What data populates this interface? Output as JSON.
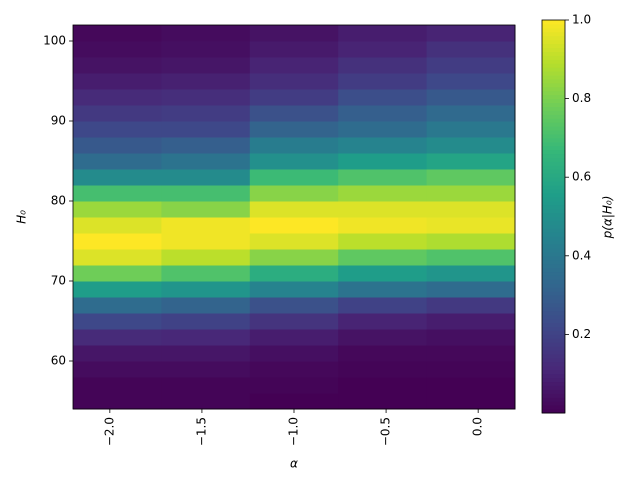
{
  "chart_data": {
    "type": "heatmap",
    "xlabel": "α",
    "ylabel": "H₀",
    "colorbar_label": "p(α|H₀)",
    "colormap": "viridis",
    "x_edges": [
      -2.2,
      -1.72,
      -1.24,
      -0.76,
      -0.28,
      0.2
    ],
    "y_edges": [
      54,
      56,
      58,
      60,
      62,
      64,
      66,
      68,
      70,
      72,
      74,
      76,
      78,
      80,
      82,
      84,
      86,
      88,
      90,
      92,
      94,
      96,
      98,
      100,
      102
    ],
    "z": [
      [
        0.01,
        0.01,
        0.0,
        0.0,
        0.0
      ],
      [
        0.01,
        0.01,
        0.01,
        0.0,
        0.0
      ],
      [
        0.03,
        0.03,
        0.02,
        0.01,
        0.01
      ],
      [
        0.06,
        0.06,
        0.04,
        0.02,
        0.02
      ],
      [
        0.12,
        0.11,
        0.08,
        0.05,
        0.04
      ],
      [
        0.22,
        0.2,
        0.15,
        0.1,
        0.08
      ],
      [
        0.35,
        0.32,
        0.25,
        0.2,
        0.17
      ],
      [
        0.55,
        0.52,
        0.45,
        0.38,
        0.35
      ],
      [
        0.78,
        0.72,
        0.62,
        0.55,
        0.52
      ],
      [
        0.95,
        0.9,
        0.82,
        0.75,
        0.72
      ],
      [
        1.0,
        0.98,
        0.95,
        0.9,
        0.88
      ],
      [
        0.95,
        0.98,
        1.0,
        0.98,
        0.97
      ],
      [
        0.85,
        0.82,
        0.95,
        0.95,
        0.95
      ],
      [
        0.7,
        0.7,
        0.82,
        0.85,
        0.85
      ],
      [
        0.48,
        0.48,
        0.68,
        0.72,
        0.75
      ],
      [
        0.35,
        0.38,
        0.5,
        0.55,
        0.58
      ],
      [
        0.28,
        0.3,
        0.42,
        0.45,
        0.48
      ],
      [
        0.22,
        0.22,
        0.32,
        0.35,
        0.4
      ],
      [
        0.17,
        0.18,
        0.25,
        0.3,
        0.34
      ],
      [
        0.12,
        0.13,
        0.18,
        0.24,
        0.28
      ],
      [
        0.08,
        0.09,
        0.13,
        0.18,
        0.22
      ],
      [
        0.05,
        0.06,
        0.1,
        0.14,
        0.18
      ],
      [
        0.03,
        0.04,
        0.07,
        0.1,
        0.14
      ],
      [
        0.02,
        0.03,
        0.05,
        0.08,
        0.1
      ]
    ],
    "xlim": [
      -2.2,
      0.2
    ],
    "xticks": [
      {
        "value": -2,
        "label": "−2.0"
      },
      {
        "value": -1.5,
        "label": "−1.5"
      },
      {
        "value": -1,
        "label": "−1.0"
      },
      {
        "value": -0.5,
        "label": "−0.5"
      },
      {
        "value": 0,
        "label": "0.0"
      }
    ],
    "ylim": [
      54,
      102
    ],
    "yticks": [
      60,
      70,
      80,
      90,
      100
    ],
    "clim": [
      0,
      1
    ],
    "cticks": [
      0.2,
      0.4,
      0.6,
      0.8,
      {
        "value": 1,
        "label": "1.0"
      }
    ]
  }
}
